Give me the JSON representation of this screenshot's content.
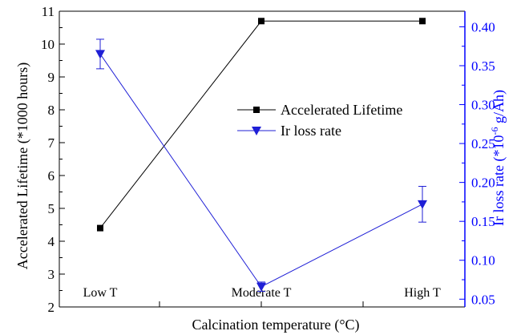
{
  "chart_data": {
    "type": "line",
    "xlabel": "Calcination temperature (°C)",
    "categories": [
      "Low T",
      "Moderate T",
      "High T"
    ],
    "y_left": {
      "label": "Accelerated Lifetime (*1000 hours)",
      "lim": [
        2,
        11
      ],
      "ticks": [
        "2",
        "3",
        "4",
        "5",
        "6",
        "7",
        "8",
        "9",
        "10",
        "11"
      ],
      "color": "#000000"
    },
    "y_right": {
      "label_parts": [
        "Ir loss rate (*10",
        "-6",
        " g/Ah)"
      ],
      "lim": [
        0.04,
        0.42
      ],
      "ticks": [
        "0.05",
        "0.10",
        "0.15",
        "0.20",
        "0.25",
        "0.30",
        "0.35",
        "0.40"
      ],
      "color": "#0000ff"
    },
    "series": [
      {
        "name": "Accelerated Lifetime",
        "axis": "left",
        "color": "#000000",
        "marker": "square",
        "values": [
          4.4,
          10.7,
          10.7
        ]
      },
      {
        "name": "Ir loss rate",
        "axis": "right",
        "color": "#1f1fd6",
        "marker": "triangle-down",
        "values": [
          0.365,
          0.066,
          0.172
        ],
        "errors": [
          0.019,
          0.006,
          0.023
        ]
      }
    ],
    "legend_position": "center-right",
    "grid": false
  }
}
